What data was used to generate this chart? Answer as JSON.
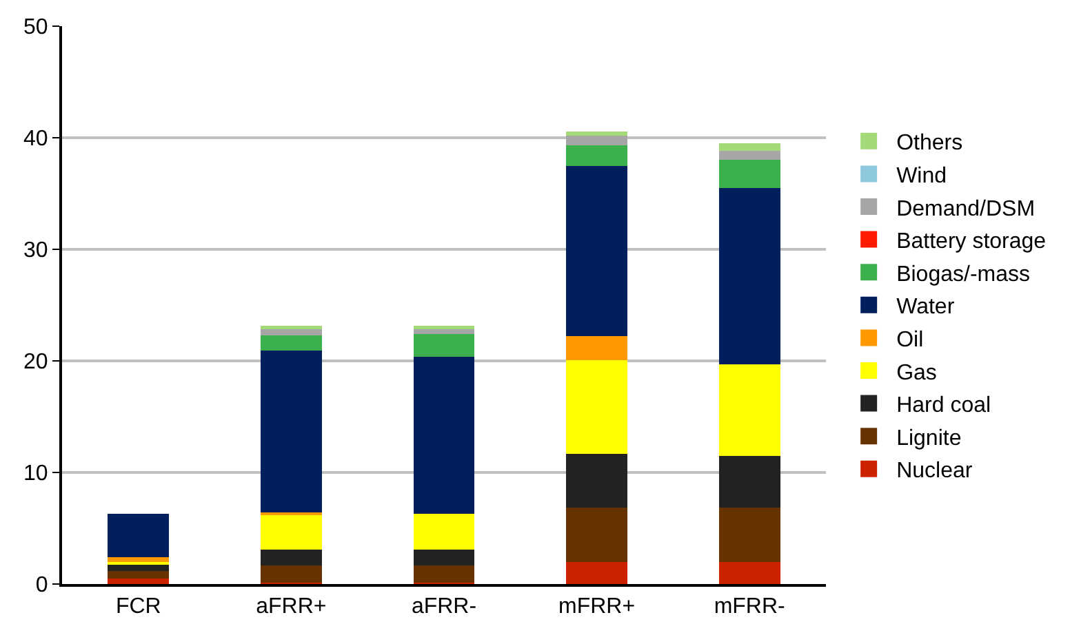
{
  "chart_data": {
    "type": "bar",
    "stacked": true,
    "categories": [
      "FCR",
      "aFRR+",
      "aFRR-",
      "mFRR+",
      "mFRR-"
    ],
    "series": [
      {
        "name": "Nuclear",
        "color": "#cc2200",
        "values": [
          0.5,
          0.1,
          0.1,
          2.0,
          2.0
        ]
      },
      {
        "name": "Lignite",
        "color": "#663300",
        "values": [
          0.65,
          1.55,
          1.55,
          4.85,
          4.85
        ]
      },
      {
        "name": "Hard coal",
        "color": "#222222",
        "values": [
          0.6,
          1.45,
          1.45,
          4.8,
          4.65
        ]
      },
      {
        "name": "Gas",
        "color": "#ffff00",
        "values": [
          0.25,
          3.1,
          3.2,
          8.4,
          8.2
        ]
      },
      {
        "name": "Oil",
        "color": "#ff9900",
        "values": [
          0.4,
          0.25,
          0,
          2.15,
          0
        ]
      },
      {
        "name": "Water",
        "color": "#001f5c",
        "values": [
          3.9,
          14.45,
          14.1,
          15.3,
          15.8
        ]
      },
      {
        "name": "Biogas/-mass",
        "color": "#3cb04c",
        "values": [
          0,
          1.4,
          2.0,
          1.8,
          2.5
        ]
      },
      {
        "name": "Battery storage",
        "color": "#ff1a00",
        "values": [
          0,
          0,
          0,
          0,
          0
        ]
      },
      {
        "name": "Demand/DSM",
        "color": "#a6a6a6",
        "values": [
          0,
          0.65,
          0.55,
          0.9,
          0.8
        ]
      },
      {
        "name": "Wind",
        "color": "#8ec8dc",
        "values": [
          0,
          0,
          0,
          0,
          0
        ]
      },
      {
        "name": "Others",
        "color": "#a3d977",
        "values": [
          0,
          0.2,
          0.2,
          0.35,
          0.7
        ]
      }
    ],
    "ylim": [
      0,
      50
    ],
    "yticks": [
      0,
      10,
      20,
      30,
      40,
      50
    ],
    "grid": "y",
    "legend": "right"
  }
}
